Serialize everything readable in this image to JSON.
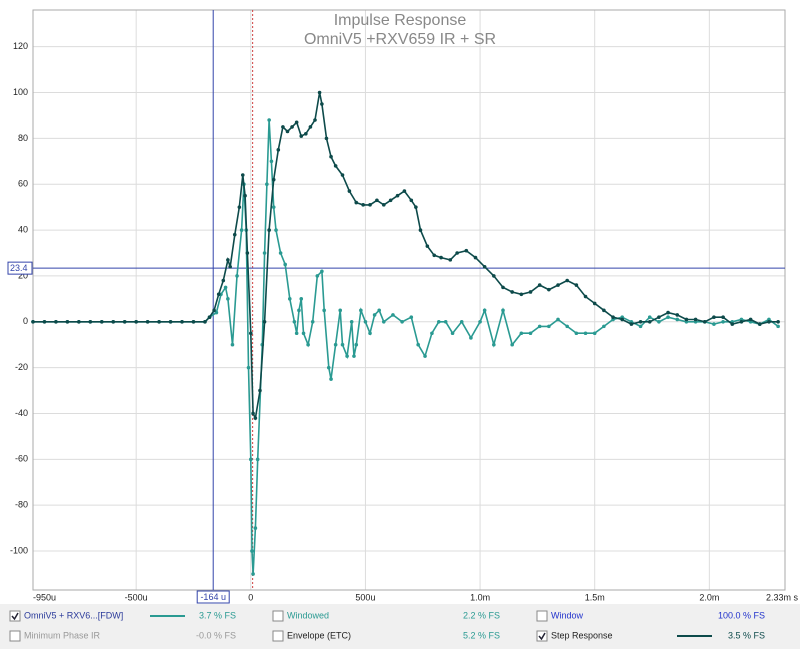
{
  "chart_data": {
    "type": "line",
    "title": "Impulse Response",
    "subtitle": "OmniV5 +RXV659 IR + SR",
    "xlim": [
      -950,
      2330
    ],
    "ylim": [
      -117,
      136
    ],
    "xticks": [
      {
        "value": -950,
        "label": "-950u"
      },
      {
        "value": -500,
        "label": "-500u"
      },
      {
        "value": 0,
        "label": "0"
      },
      {
        "value": 500,
        "label": "500u"
      },
      {
        "value": 1000,
        "label": "1.0m"
      },
      {
        "value": 1500,
        "label": "1.5m"
      },
      {
        "value": 2000,
        "label": "2.0m"
      },
      {
        "value": 2330,
        "label": "2.33m s"
      }
    ],
    "yticks": [
      -100,
      -80,
      -60,
      -40,
      -20,
      0,
      20,
      40,
      60,
      80,
      100,
      120
    ],
    "grid": true,
    "cursor_x": {
      "value": -164,
      "label": "-164 u"
    },
    "cursor_y": {
      "value": 23.4,
      "label": "23.4"
    },
    "reference_x": 8,
    "series": [
      {
        "name": "OmniV5 + RXV6...[FDW]",
        "checked": true,
        "reading": "3.7 % FS",
        "color": "#2a9a92",
        "label_color": "#2a3a9a",
        "x": [
          -950,
          -900,
          -850,
          -800,
          -750,
          -700,
          -650,
          -600,
          -550,
          -500,
          -450,
          -400,
          -350,
          -300,
          -250,
          -200,
          -180,
          -150,
          -130,
          -110,
          -100,
          -80,
          -60,
          -40,
          -30,
          -20,
          -10,
          0,
          5,
          10,
          20,
          30,
          50,
          60,
          70,
          80,
          90,
          100,
          110,
          130,
          150,
          170,
          190,
          200,
          210,
          220,
          230,
          250,
          270,
          290,
          310,
          320,
          340,
          350,
          370,
          390,
          400,
          420,
          440,
          450,
          460,
          480,
          500,
          520,
          540,
          560,
          580,
          620,
          660,
          700,
          730,
          760,
          790,
          820,
          850,
          880,
          920,
          960,
          1000,
          1020,
          1060,
          1100,
          1140,
          1180,
          1220,
          1260,
          1300,
          1340,
          1380,
          1420,
          1460,
          1500,
          1540,
          1580,
          1620,
          1660,
          1700,
          1740,
          1780,
          1820,
          1860,
          1900,
          1940,
          1980,
          2020,
          2060,
          2100,
          2140,
          2180,
          2220,
          2260,
          2300
        ],
        "values": [
          0,
          0,
          0,
          0,
          0,
          0,
          0,
          0,
          0,
          0,
          0,
          0,
          0,
          0,
          0,
          0,
          2,
          4,
          12,
          15,
          10,
          -10,
          20,
          40,
          60,
          40,
          -20,
          -60,
          -100,
          -110,
          -90,
          -60,
          -10,
          30,
          60,
          88,
          70,
          50,
          40,
          30,
          25,
          10,
          0,
          -5,
          5,
          10,
          -5,
          -10,
          0,
          20,
          22,
          5,
          -20,
          -25,
          -10,
          5,
          -10,
          -15,
          0,
          -15,
          -10,
          5,
          0,
          -5,
          3,
          5,
          0,
          3,
          0,
          2,
          -10,
          -15,
          -5,
          0,
          0,
          -5,
          0,
          -7,
          0,
          5,
          -10,
          5,
          -10,
          -5,
          -5,
          -2,
          -2,
          1,
          -2,
          -5,
          -5,
          -5,
          -2,
          1,
          2,
          0,
          -2,
          2,
          0,
          2,
          1,
          0,
          0,
          0,
          -1,
          0,
          0,
          1,
          0,
          -1,
          1,
          -2
        ]
      },
      {
        "name": "Step Response",
        "checked": true,
        "reading": "3.5 % FS",
        "color": "#0d4a4a",
        "label_color": "#222222",
        "x": [
          -950,
          -900,
          -850,
          -800,
          -750,
          -700,
          -650,
          -600,
          -550,
          -500,
          -450,
          -400,
          -350,
          -300,
          -250,
          -200,
          -180,
          -160,
          -140,
          -120,
          -100,
          -90,
          -70,
          -50,
          -35,
          -25,
          -15,
          0,
          10,
          20,
          40,
          60,
          80,
          100,
          120,
          140,
          160,
          180,
          200,
          220,
          240,
          260,
          280,
          300,
          310,
          330,
          350,
          370,
          400,
          430,
          460,
          490,
          520,
          550,
          580,
          610,
          640,
          670,
          700,
          720,
          740,
          770,
          800,
          830,
          870,
          900,
          940,
          980,
          1020,
          1060,
          1100,
          1140,
          1180,
          1220,
          1260,
          1300,
          1340,
          1380,
          1420,
          1460,
          1500,
          1540,
          1580,
          1620,
          1660,
          1700,
          1740,
          1780,
          1820,
          1860,
          1900,
          1940,
          1980,
          2020,
          2060,
          2100,
          2140,
          2180,
          2220,
          2260,
          2300
        ],
        "values": [
          0,
          0,
          0,
          0,
          0,
          0,
          0,
          0,
          0,
          0,
          0,
          0,
          0,
          0,
          0,
          0,
          2,
          5,
          12,
          18,
          27,
          24,
          38,
          50,
          64,
          55,
          30,
          -5,
          -40,
          -42,
          -30,
          0,
          40,
          62,
          75,
          85,
          83,
          85,
          87,
          81,
          82,
          85,
          88,
          100,
          95,
          80,
          72,
          68,
          64,
          57,
          52,
          51,
          51,
          53,
          51,
          53,
          55,
          57,
          53,
          50,
          40,
          33,
          29,
          28,
          27,
          30,
          31,
          28,
          24,
          20,
          15,
          13,
          12,
          13,
          16,
          14,
          16,
          18,
          16,
          11,
          8,
          5,
          2,
          1,
          -1,
          0,
          0,
          2,
          4,
          3,
          1,
          1,
          0,
          2,
          2,
          -1,
          0,
          1,
          -1,
          0,
          0
        ]
      }
    ],
    "other_traces": [
      {
        "name": "Windowed",
        "checked": false,
        "reading": "2.2 % FS",
        "label_color": "#2a9a92",
        "reading_color": "#2a9a92"
      },
      {
        "name": "Window",
        "checked": false,
        "reading": "100.0 % FS",
        "label_color": "#2233cc",
        "reading_color": "#2233cc"
      },
      {
        "name": "Minimum Phase IR",
        "checked": false,
        "reading": "-0.0 % FS",
        "label_color": "#999999",
        "reading_color": "#999999"
      },
      {
        "name": "Envelope (ETC)",
        "checked": false,
        "reading": "5.2 % FS",
        "label_color": "#222222",
        "reading_color": "#2a9a92"
      }
    ]
  }
}
